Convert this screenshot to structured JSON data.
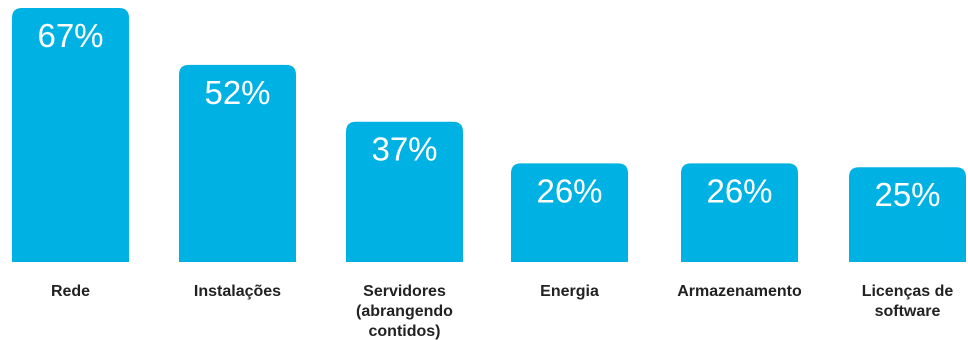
{
  "chart_data": {
    "type": "bar",
    "categories": [
      "Rede",
      "Instalações",
      "Servidores (abrangendo contidos)",
      "Energia",
      "Armazenamento",
      "Licenças de software"
    ],
    "category_lines": [
      [
        "Rede"
      ],
      [
        "Instalações"
      ],
      [
        "Servidores",
        "(abrangendo",
        "contidos)"
      ],
      [
        "Energia"
      ],
      [
        "Armazenamento"
      ],
      [
        "Licenças de",
        "software"
      ]
    ],
    "values": [
      67,
      52,
      37,
      26,
      26,
      25
    ],
    "value_labels": [
      "67%",
      "52%",
      "37%",
      "26%",
      "26%",
      "25%"
    ],
    "unit": "%",
    "title": "",
    "xlabel": "",
    "ylabel": "",
    "ylim": [
      0,
      67
    ],
    "grid": false,
    "legend": "none",
    "colors": {
      "bar": "#00b2e3",
      "value_text": "#ffffff",
      "category_text": "#222222"
    }
  }
}
